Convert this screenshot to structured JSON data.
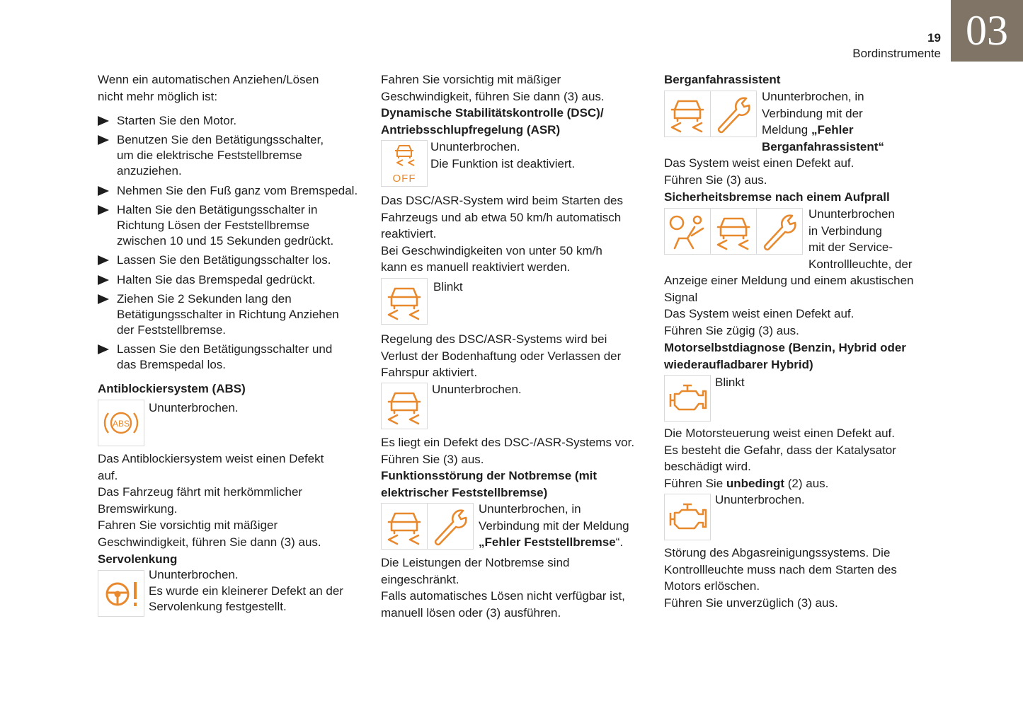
{
  "header": {
    "chapter": "03",
    "page_number": "19",
    "section": "Bordinstrumente"
  },
  "colors": {
    "accent": "#e8892d",
    "tab": "#7f7466"
  },
  "col1": {
    "intro": "Wenn ein automatischen Anziehen/Lösen\nnicht mehr möglich ist:",
    "steps": [
      "Starten Sie den Motor.",
      "Benutzen Sie den Betätigungsschalter,\num die elektrische Feststellbremse\nanzuziehen.",
      "Nehmen Sie den Fuß ganz vom Bremspedal.",
      "Halten Sie den Betätigungsschalter in\nRichtung Lösen der Feststellbremse\nzwischen 10 und 15 Sekunden gedrückt.",
      "Lassen Sie den Betätigungsschalter los.",
      "Halten Sie das Bremspedal gedrückt.",
      "Ziehen Sie 2 Sekunden lang den\nBetätigungsschalter in Richtung Anziehen\nder Feststellbremse.",
      "Lassen Sie den Betätigungsschalter und\ndas Bremspedal los."
    ],
    "abs_heading": "Antiblockiersystem (ABS)",
    "abs_state": "Ununterbrochen.",
    "abs_icon_text": "ABS",
    "abs_text": "Das Antiblockiersystem weist einen Defekt\nauf.\nDas Fahrzeug fährt mit herkömmlicher\nBremswirkung.\nFahren Sie vorsichtig mit mäßiger\nGeschwindigkeit, führen Sie dann (3) aus.",
    "servo_heading": "Servolenkung",
    "servo_text": "Ununterbrochen.\nEs wurde ein kleinerer Defekt an der\nServolenkung festgestellt."
  },
  "col2": {
    "p1": "Fahren Sie vorsichtig mit mäßiger\nGeschwindigkeit, führen Sie dann (3) aus.",
    "dsc_heading": "Dynamische Stabilitätskontrolle (DSC)/\nAntriebsschlupfregelung (ASR)",
    "off_label": "OFF",
    "dsc_off_text": "Ununterbrochen.\nDie Funktion ist deaktiviert.",
    "p2": "Das DSC/ASR-System wird beim Starten des\nFahrzeugs und ab etwa 50 km/h automatisch\nreaktiviert.\nBei Geschwindigkeiten von unter 50 km/h\nkann es manuell reaktiviert werden.",
    "blink": "Blinkt",
    "p3": "Regelung des DSC/ASR-Systems wird bei\nVerlust der Bodenhaftung oder Verlassen der\nFahrspur aktiviert.",
    "cont": "Ununterbrochen.",
    "p4": "Es liegt ein Defekt des DSC-/ASR-Systems vor.\nFühren Sie (3) aus.",
    "notbremse_heading": "Funktionsstörung der Notbremse (mit\nelektrischer Feststellbremse)",
    "notbremse_state": "Ununterbrochen, in\nVerbindung mit der Meldung\n",
    "notbremse_msg": "„Fehler Feststellbremse",
    "notbremse_end": "“.",
    "p5": "Die Leistungen der Notbremse sind\neingeschränkt.\nFalls automatisches Lösen nicht verfügbar ist,\nmanuell lösen oder (3) ausführen."
  },
  "col3": {
    "berg_heading": "Berganfahrassistent",
    "berg_state": "Ununterbrochen, in\nVerbindung mit der\nMeldung ",
    "berg_msg": "„Fehler\nBerganfahrassistent“",
    "berg_text": "Das System weist einen Defekt auf.\nFühren Sie (3) aus.",
    "sich_heading": "Sicherheitsbremse nach einem Aufprall",
    "sich_state": "Ununterbrochen\nin Verbindung\nmit der Service-\nKontrollleuchte, der",
    "sich_text": "Anzeige einer Meldung und einem akustischen\nSignal\nDas System weist einen Defekt auf.\nFühren Sie zügig (3) aus.",
    "motor_heading": "Motorselbstdiagnose (Benzin, Hybrid oder\nwiederaufladbarer Hybrid)",
    "blink": "Blinkt",
    "motor_text": "Die Motorsteuerung weist einen Defekt auf.\nEs besteht die Gefahr, dass der Katalysator\nbeschädigt wird.\nFühren Sie ",
    "motor_bold": "unbedingt",
    "motor_end": " (2) aus.",
    "cont": "Ununterbrochen.",
    "abgas_text": "Störung des Abgasreinigungssystems. Die\nKontrollleuchte muss nach dem Starten des\nMotors erlöschen.\nFühren Sie unverzüglich (3) aus."
  }
}
